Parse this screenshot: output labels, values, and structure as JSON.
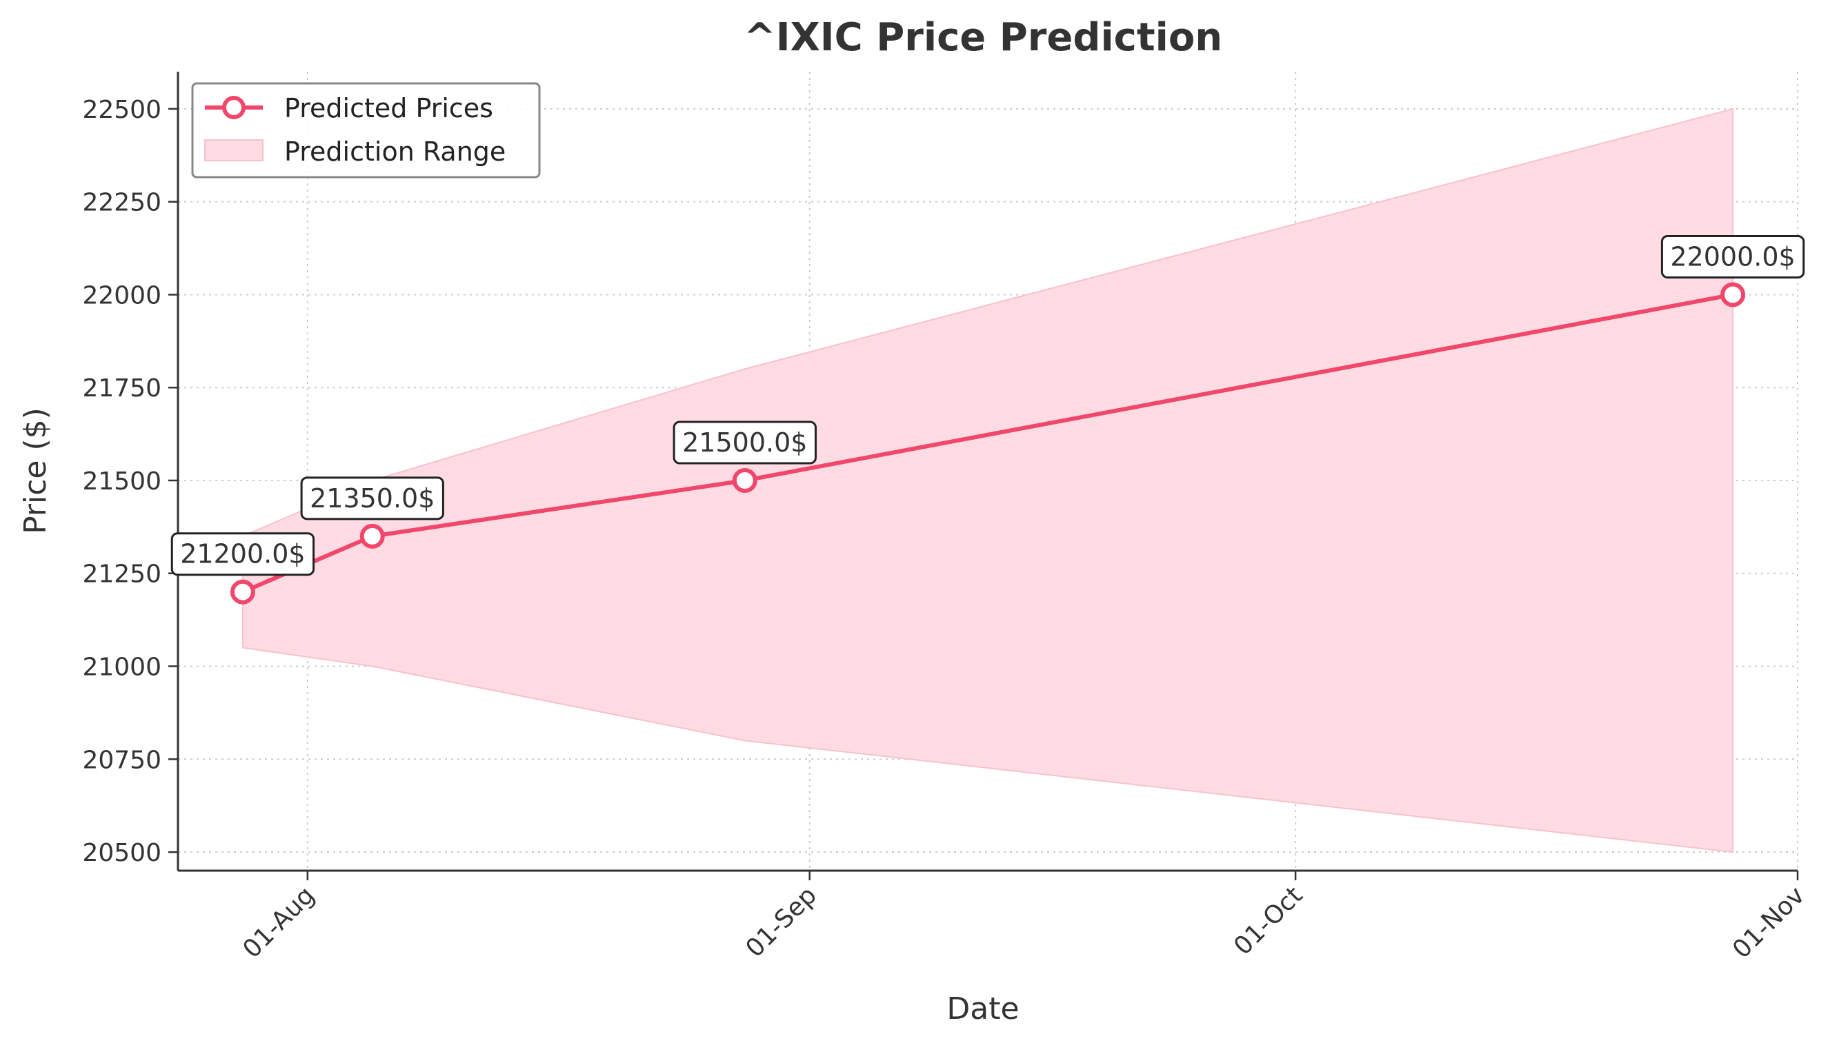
{
  "chart_data": {
    "type": "line",
    "title": "^IXIC Price Prediction",
    "xlabel": "Date",
    "ylabel": "Price ($)",
    "ylim": [
      20450,
      22600
    ],
    "xlim": [
      "2025-07-24",
      "2025-11-01"
    ],
    "yticks": [
      20500,
      20750,
      21000,
      21250,
      21500,
      21750,
      22000,
      22250,
      22500
    ],
    "xticks": [
      {
        "date": "2025-08-01",
        "label": "01-Aug"
      },
      {
        "date": "2025-09-01",
        "label": "01-Sep"
      },
      {
        "date": "2025-10-01",
        "label": "01-Oct"
      },
      {
        "date": "2025-11-01",
        "label": "01-Nov"
      }
    ],
    "grid": true,
    "legend_position": "top-left",
    "colors": {
      "line": "#f0476a",
      "band": "#ffdce3",
      "band_edge": "#f7c2cc",
      "grid": "#cccccc",
      "axis": "#333333"
    },
    "series": [
      {
        "name": "Predicted Prices",
        "x": [
          "2025-07-28",
          "2025-08-05",
          "2025-08-28",
          "2025-10-28"
        ],
        "values": [
          21200,
          21350,
          21500,
          22000
        ],
        "labels": [
          "21200.0$",
          "21350.0$",
          "21500.0$",
          "22000.0$"
        ]
      },
      {
        "name": "Prediction Range",
        "x": [
          "2025-07-28",
          "2025-08-05",
          "2025-08-28",
          "2025-10-28"
        ],
        "lower": [
          21050,
          21000,
          20800,
          20500
        ],
        "upper": [
          21350,
          21500,
          21800,
          22500
        ]
      }
    ]
  }
}
